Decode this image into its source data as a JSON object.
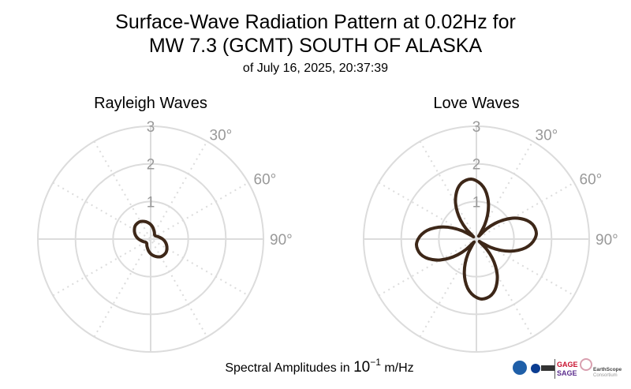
{
  "figure": {
    "title_line1": "Surface-Wave Radiation Pattern at 0.02Hz for",
    "title_line2": "MW 7.3 (GCMT) SOUTH OF ALASKA",
    "subtitle": "of July 16, 2025, 20:37:39",
    "xlabel_prefix": "Spectral Amplitudes in ",
    "xlabel_base": "10",
    "xlabel_exp": "−1",
    "xlabel_unit": " m/Hz",
    "logos": [
      "NSF",
      "NASA",
      "USGS",
      "GAGE",
      "SAGE",
      "EarthScope Consortium"
    ]
  },
  "colors": {
    "line": "#3d2718",
    "grid": "#dcdcdc",
    "tick": "#999999"
  },
  "chart_data": [
    {
      "type": "polar-line",
      "title": "Rayleigh Waves",
      "radial_ticks": [
        1,
        2,
        3
      ],
      "radial_tick_labels": [
        "1",
        "2",
        "3"
      ],
      "rlim": [
        0,
        3
      ],
      "angle_tick_labels": [
        "30°",
        "60°",
        "90°"
      ],
      "angle_ticks": [
        30,
        60,
        90
      ],
      "angle_zero": "north",
      "angle_direction": "clockwise",
      "azimuth_step_deg": 10,
      "amplitude": [
        0.39,
        0.32,
        0.25,
        0.2,
        0.16,
        0.15,
        0.16,
        0.2,
        0.25,
        0.32,
        0.39,
        0.45,
        0.5,
        0.54,
        0.55,
        0.54,
        0.5,
        0.45,
        0.39,
        0.32,
        0.25,
        0.2,
        0.16,
        0.15,
        0.16,
        0.2,
        0.25,
        0.32,
        0.39,
        0.45,
        0.5,
        0.54,
        0.55,
        0.54,
        0.5,
        0.45
      ]
    },
    {
      "type": "polar-line",
      "title": "Love Waves",
      "radial_ticks": [
        1,
        2,
        3
      ],
      "radial_tick_labels": [
        "1",
        "2",
        "3"
      ],
      "rlim": [
        0,
        3
      ],
      "angle_tick_labels": [
        "30°",
        "60°",
        "90°"
      ],
      "angle_ticks": [
        30,
        60,
        90
      ],
      "angle_zero": "north",
      "angle_direction": "clockwise",
      "azimuth_step_deg": 5,
      "amplitude": [
        1.55,
        1.46,
        1.33,
        1.15,
        0.94,
        0.7,
        0.44,
        0.17,
        0.11,
        0.39,
        0.65,
        0.89,
        1.11,
        1.29,
        1.44,
        1.54,
        1.59,
        1.6,
        1.55,
        1.46,
        1.33,
        1.15,
        0.94,
        0.7,
        0.44,
        0.17,
        0.11,
        0.39,
        0.65,
        0.89,
        1.11,
        1.29,
        1.44,
        1.54,
        1.59,
        1.6,
        1.55,
        1.46,
        1.33,
        1.15,
        0.94,
        0.7,
        0.44,
        0.17,
        0.11,
        0.39,
        0.65,
        0.89,
        1.11,
        1.29,
        1.44,
        1.54,
        1.59,
        1.6,
        1.55,
        1.46,
        1.33,
        1.15,
        0.94,
        0.7,
        0.44,
        0.17,
        0.11,
        0.39,
        0.65,
        0.89,
        1.11,
        1.29,
        1.44,
        1.54,
        1.59,
        1.6
      ]
    }
  ]
}
